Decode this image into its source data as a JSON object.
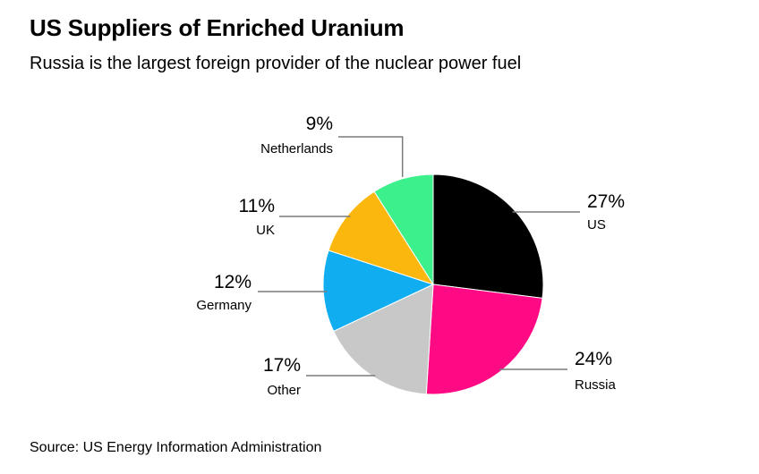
{
  "chart_data": {
    "type": "pie",
    "title": "US Suppliers of Enriched Uranium",
    "subtitle": "Russia is the largest foreign provider of the nuclear power fuel",
    "source": "Source: US Energy Information Administration",
    "slices": [
      {
        "name": "US",
        "value": 27,
        "label": "27%",
        "color": "#000000"
      },
      {
        "name": "Russia",
        "value": 24,
        "label": "24%",
        "color": "#ff0a85"
      },
      {
        "name": "Other",
        "value": 17,
        "label": "17%",
        "color": "#c8c8c8"
      },
      {
        "name": "Germany",
        "value": 12,
        "label": "12%",
        "color": "#10adf0"
      },
      {
        "name": "UK",
        "value": 11,
        "label": "11%",
        "color": "#fcb70e"
      },
      {
        "name": "Netherlands",
        "value": 9,
        "label": "9%",
        "color": "#3cf08c"
      }
    ],
    "start_angle": "12 o'clock",
    "direction": "clockwise"
  }
}
